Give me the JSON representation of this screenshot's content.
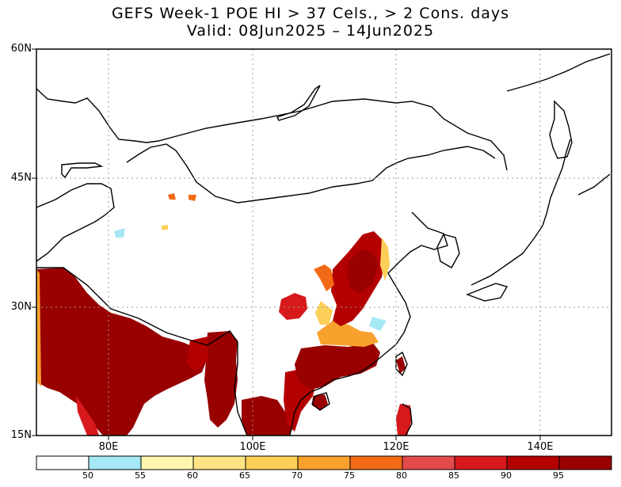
{
  "title": {
    "line1": "GEFS Week-1 POE HI > 37 Cels., > 2 Cons. days",
    "line2": "Valid: 08Jun2025 – 14Jun2025"
  },
  "axes": {
    "lat_labels": [
      "60N",
      "45N",
      "30N",
      "15N"
    ],
    "lon_labels": [
      "80E",
      "100E",
      "120E",
      "140E"
    ]
  },
  "colorbar": {
    "labels": [
      "50",
      "55",
      "60",
      "65",
      "70",
      "75",
      "80",
      "85",
      "90",
      "95"
    ],
    "colors": [
      "#ffffff",
      "#a6e8f5",
      "#fff7b0",
      "#ffe484",
      "#fdcf58",
      "#f9a12d",
      "#f26a16",
      "#e34b4b",
      "#d7191c",
      "#b40000",
      "#990000"
    ]
  },
  "colors": {
    "heat_max": "#990000",
    "heat_high": "#c41010",
    "heat_mid": "#f26a16",
    "heat_low": "#fdcf58",
    "heat_min": "#a6e8f5",
    "coast": "#000000",
    "grid": "#999999"
  }
}
